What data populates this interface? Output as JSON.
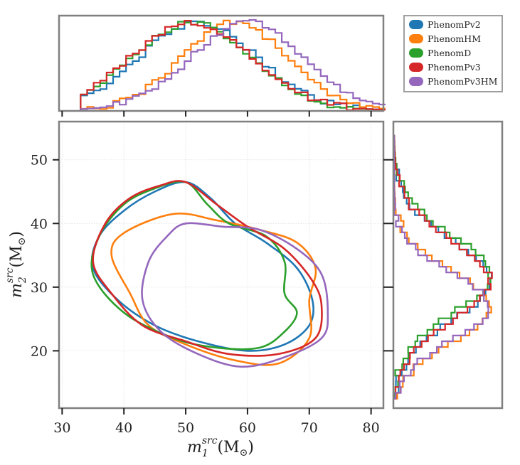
{
  "chart_data": {
    "type": "corner-plot",
    "title": "",
    "xlabel": {
      "base": "m",
      "sub": "1",
      "sup": "src",
      "unit": "(M",
      "sun": "⊙",
      "close": ")"
    },
    "ylabel": {
      "base": "m",
      "sub": "2",
      "sup": "src",
      "unit": "(M",
      "sun": "⊙",
      "close": ")"
    },
    "xlim": [
      29.5,
      82
    ],
    "ylim": [
      11,
      56
    ],
    "xticks": [
      30,
      40,
      50,
      60,
      70,
      80
    ],
    "yticks": [
      20,
      30,
      40,
      50
    ],
    "grid": true,
    "legend_position": "top-right",
    "series": [
      {
        "name": "PhenomPv2",
        "color": "#1f77b4",
        "m1_peak": 52,
        "m1_width": 9.5,
        "m2_peak": 31,
        "m2_width": 6.3,
        "contour": [
          [
            50,
            46.5
          ],
          [
            54,
            44
          ],
          [
            58,
            40
          ],
          [
            63,
            37
          ],
          [
            68,
            33
          ],
          [
            70.5,
            28
          ],
          [
            70,
            24
          ],
          [
            66,
            21
          ],
          [
            60,
            20
          ],
          [
            52,
            21.5
          ],
          [
            45,
            24
          ],
          [
            39,
            28
          ],
          [
            35,
            33
          ],
          [
            36,
            38
          ],
          [
            40,
            42
          ],
          [
            45,
            45
          ]
        ]
      },
      {
        "name": "PhenomHM",
        "color": "#ff7f0e",
        "m1_peak": 58,
        "m1_width": 8.5,
        "m2_peak": 27,
        "m2_width": 5.6,
        "contour": [
          [
            48,
            41.5
          ],
          [
            55,
            40.5
          ],
          [
            62,
            39
          ],
          [
            68,
            37
          ],
          [
            71,
            33
          ],
          [
            70,
            28
          ],
          [
            70,
            22
          ],
          [
            65,
            18
          ],
          [
            58,
            18.5
          ],
          [
            50,
            21
          ],
          [
            44,
            24
          ],
          [
            41,
            29
          ],
          [
            38,
            35
          ],
          [
            40,
            38.5
          ]
        ]
      },
      {
        "name": "PhenomD",
        "color": "#2ca02c",
        "m1_peak": 51,
        "m1_width": 9.5,
        "m2_peak": 32,
        "m2_width": 6.2,
        "contour": [
          [
            50,
            46.5
          ],
          [
            53.5,
            43
          ],
          [
            57,
            40
          ],
          [
            63,
            38
          ],
          [
            66,
            34
          ],
          [
            66,
            29
          ],
          [
            68,
            26
          ],
          [
            66,
            23
          ],
          [
            62,
            20.5
          ],
          [
            55,
            20.5
          ],
          [
            48,
            22
          ],
          [
            40,
            26
          ],
          [
            35,
            32
          ],
          [
            36,
            38
          ],
          [
            40,
            43
          ],
          [
            45,
            45.5
          ]
        ]
      },
      {
        "name": "PhenomPv3",
        "color": "#d62728",
        "m1_peak": 51,
        "m1_width": 9.8,
        "m2_peak": 31,
        "m2_width": 6.3,
        "contour": [
          [
            50,
            46.5
          ],
          [
            55,
            43
          ],
          [
            60,
            39.5
          ],
          [
            66,
            36
          ],
          [
            70.5,
            31
          ],
          [
            72,
            27
          ],
          [
            71,
            22
          ],
          [
            65,
            19.5
          ],
          [
            57,
            19.5
          ],
          [
            50,
            21.5
          ],
          [
            43,
            24
          ],
          [
            38,
            29
          ],
          [
            35,
            34
          ],
          [
            37,
            40
          ],
          [
            41,
            44
          ],
          [
            46,
            46
          ]
        ]
      },
      {
        "name": "PhenomPv3HM",
        "color": "#9467bd",
        "m1_peak": 60,
        "m1_width": 9,
        "m2_peak": 27,
        "m2_width": 5.3,
        "contour": [
          [
            50,
            40
          ],
          [
            56,
            39.5
          ],
          [
            62,
            39
          ],
          [
            68,
            36
          ],
          [
            72,
            32
          ],
          [
            73,
            26
          ],
          [
            72,
            22
          ],
          [
            66,
            19
          ],
          [
            59,
            17.5
          ],
          [
            52,
            19.5
          ],
          [
            46,
            23
          ],
          [
            43,
            28
          ],
          [
            44,
            34
          ],
          [
            47,
            38
          ]
        ]
      }
    ]
  }
}
